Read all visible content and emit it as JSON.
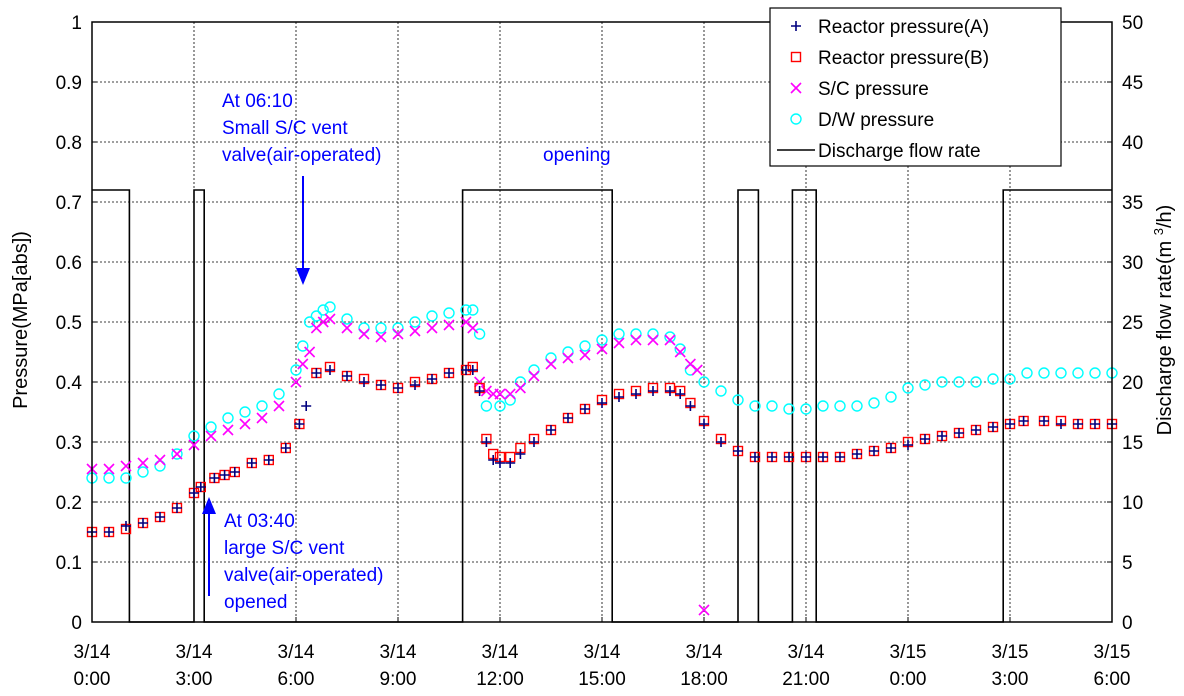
{
  "chart_data": {
    "type": "scatter",
    "title": "",
    "ylabel": "Pressure(MPa[abs])",
    "y2label": "Discharge flow rate(m³/h)",
    "xlabel": "",
    "x_unit": "hours from 3/14 0:00",
    "xlim": [
      0,
      30
    ],
    "ylim": [
      0,
      1
    ],
    "y2lim": [
      0,
      50
    ],
    "grid": true,
    "legend_position": "top-right",
    "y_ticks": [
      "0",
      "0.1",
      "0.2",
      "0.3",
      "0.4",
      "0.5",
      "0.6",
      "0.7",
      "0.8",
      "0.9",
      "1"
    ],
    "y2_ticks": [
      "0",
      "5",
      "10",
      "15",
      "20",
      "25",
      "30",
      "35",
      "40",
      "45",
      "50"
    ],
    "x_ticks": [
      {
        "x": 0,
        "line1": "3/14",
        "line2": "0:00"
      },
      {
        "x": 3,
        "line1": "3/14",
        "line2": "3:00"
      },
      {
        "x": 6,
        "line1": "3/14",
        "line2": "6:00"
      },
      {
        "x": 9,
        "line1": "3/14",
        "line2": "9:00"
      },
      {
        "x": 12,
        "line1": "3/14",
        "line2": "12:00"
      },
      {
        "x": 15,
        "line1": "3/14",
        "line2": "15:00"
      },
      {
        "x": 18,
        "line1": "3/14",
        "line2": "18:00"
      },
      {
        "x": 21,
        "line1": "3/14",
        "line2": "21:00"
      },
      {
        "x": 24,
        "line1": "3/15",
        "line2": "0:00"
      },
      {
        "x": 27,
        "line1": "3/15",
        "line2": "3:00"
      },
      {
        "x": 30,
        "line1": "3/15",
        "line2": "6:00"
      }
    ],
    "series": [
      {
        "name": "Reactor pressure(A)",
        "marker": "plus",
        "color": "#00007f",
        "points": [
          [
            0,
            0.15
          ],
          [
            0.5,
            0.15
          ],
          [
            1,
            0.16
          ],
          [
            1.5,
            0.165
          ],
          [
            2,
            0.175
          ],
          [
            2.5,
            0.19
          ],
          [
            3,
            0.215
          ],
          [
            3.2,
            0.225
          ],
          [
            3.6,
            0.24
          ],
          [
            3.9,
            0.245
          ],
          [
            4.2,
            0.25
          ],
          [
            4.7,
            0.265
          ],
          [
            5.2,
            0.27
          ],
          [
            5.7,
            0.29
          ],
          [
            6.1,
            0.33
          ],
          [
            6.3,
            0.36
          ],
          [
            6.6,
            0.415
          ],
          [
            7,
            0.42
          ],
          [
            7.5,
            0.41
          ],
          [
            8,
            0.4
          ],
          [
            8.5,
            0.395
          ],
          [
            9,
            0.39
          ],
          [
            9.5,
            0.395
          ],
          [
            10,
            0.405
          ],
          [
            10.5,
            0.415
          ],
          [
            11,
            0.42
          ],
          [
            11.2,
            0.42
          ],
          [
            11.4,
            0.385
          ],
          [
            11.6,
            0.3
          ],
          [
            11.8,
            0.27
          ],
          [
            12,
            0.265
          ],
          [
            12.3,
            0.265
          ],
          [
            12.6,
            0.28
          ],
          [
            13,
            0.3
          ],
          [
            13.5,
            0.32
          ],
          [
            14,
            0.34
          ],
          [
            14.5,
            0.355
          ],
          [
            15,
            0.365
          ],
          [
            15.5,
            0.375
          ],
          [
            16,
            0.38
          ],
          [
            16.5,
            0.385
          ],
          [
            17,
            0.385
          ],
          [
            17.3,
            0.38
          ],
          [
            17.6,
            0.36
          ],
          [
            18,
            0.33
          ],
          [
            18.5,
            0.3
          ],
          [
            19,
            0.285
          ],
          [
            19.5,
            0.275
          ],
          [
            20,
            0.275
          ],
          [
            20.5,
            0.275
          ],
          [
            21,
            0.275
          ],
          [
            21.5,
            0.275
          ],
          [
            22,
            0.275
          ],
          [
            22.5,
            0.28
          ],
          [
            23,
            0.285
          ],
          [
            23.5,
            0.29
          ],
          [
            24,
            0.295
          ],
          [
            24.5,
            0.305
          ],
          [
            25,
            0.31
          ],
          [
            25.5,
            0.315
          ],
          [
            26,
            0.32
          ],
          [
            26.5,
            0.325
          ],
          [
            27,
            0.33
          ],
          [
            27.4,
            0.335
          ],
          [
            28,
            0.335
          ],
          [
            28.5,
            0.33
          ],
          [
            29,
            0.33
          ],
          [
            29.5,
            0.33
          ],
          [
            30,
            0.33
          ]
        ]
      },
      {
        "name": "Reactor pressure(B)",
        "marker": "square",
        "color": "#ff0000",
        "points": [
          [
            0,
            0.15
          ],
          [
            0.5,
            0.15
          ],
          [
            1,
            0.155
          ],
          [
            1.5,
            0.165
          ],
          [
            2,
            0.175
          ],
          [
            2.5,
            0.19
          ],
          [
            3,
            0.215
          ],
          [
            3.2,
            0.225
          ],
          [
            3.6,
            0.24
          ],
          [
            3.9,
            0.245
          ],
          [
            4.2,
            0.25
          ],
          [
            4.7,
            0.265
          ],
          [
            5.2,
            0.27
          ],
          [
            5.7,
            0.29
          ],
          [
            6.1,
            0.33
          ],
          [
            6.6,
            0.415
          ],
          [
            7,
            0.425
          ],
          [
            7.5,
            0.41
          ],
          [
            8,
            0.405
          ],
          [
            8.5,
            0.395
          ],
          [
            9,
            0.39
          ],
          [
            9.5,
            0.4
          ],
          [
            10,
            0.405
          ],
          [
            10.5,
            0.415
          ],
          [
            11,
            0.42
          ],
          [
            11.2,
            0.425
          ],
          [
            11.4,
            0.39
          ],
          [
            11.6,
            0.305
          ],
          [
            11.8,
            0.28
          ],
          [
            12,
            0.275
          ],
          [
            12.3,
            0.275
          ],
          [
            12.6,
            0.29
          ],
          [
            13,
            0.305
          ],
          [
            13.5,
            0.32
          ],
          [
            14,
            0.34
          ],
          [
            14.5,
            0.355
          ],
          [
            15,
            0.37
          ],
          [
            15.5,
            0.38
          ],
          [
            16,
            0.385
          ],
          [
            16.5,
            0.39
          ],
          [
            17,
            0.39
          ],
          [
            17.3,
            0.385
          ],
          [
            17.6,
            0.365
          ],
          [
            18,
            0.335
          ],
          [
            18.5,
            0.305
          ],
          [
            19,
            0.285
          ],
          [
            19.5,
            0.275
          ],
          [
            20,
            0.275
          ],
          [
            20.5,
            0.275
          ],
          [
            21,
            0.275
          ],
          [
            21.5,
            0.275
          ],
          [
            22,
            0.275
          ],
          [
            22.5,
            0.28
          ],
          [
            23,
            0.285
          ],
          [
            23.5,
            0.29
          ],
          [
            24,
            0.3
          ],
          [
            24.5,
            0.305
          ],
          [
            25,
            0.31
          ],
          [
            25.5,
            0.315
          ],
          [
            26,
            0.32
          ],
          [
            26.5,
            0.325
          ],
          [
            27,
            0.33
          ],
          [
            27.4,
            0.335
          ],
          [
            28,
            0.335
          ],
          [
            28.5,
            0.335
          ],
          [
            29,
            0.33
          ],
          [
            29.5,
            0.33
          ],
          [
            30,
            0.33
          ]
        ]
      },
      {
        "name": "S/C pressure",
        "marker": "cross",
        "color": "#ff00ff",
        "points": [
          [
            0,
            0.255
          ],
          [
            0.5,
            0.255
          ],
          [
            1,
            0.26
          ],
          [
            1.5,
            0.265
          ],
          [
            2,
            0.27
          ],
          [
            2.5,
            0.28
          ],
          [
            3,
            0.295
          ],
          [
            3.5,
            0.31
          ],
          [
            4,
            0.32
          ],
          [
            4.5,
            0.33
          ],
          [
            5,
            0.34
          ],
          [
            5.5,
            0.36
          ],
          [
            6,
            0.4
          ],
          [
            6.2,
            0.43
          ],
          [
            6.4,
            0.45
          ],
          [
            6.6,
            0.49
          ],
          [
            6.8,
            0.5
          ],
          [
            7,
            0.505
          ],
          [
            7.5,
            0.49
          ],
          [
            8,
            0.48
          ],
          [
            8.5,
            0.475
          ],
          [
            9,
            0.48
          ],
          [
            9.5,
            0.485
          ],
          [
            10,
            0.49
          ],
          [
            10.5,
            0.495
          ],
          [
            11,
            0.5
          ],
          [
            11.2,
            0.49
          ],
          [
            11.4,
            0.4
          ],
          [
            11.6,
            0.385
          ],
          [
            11.8,
            0.38
          ],
          [
            12,
            0.38
          ],
          [
            12.3,
            0.38
          ],
          [
            12.6,
            0.39
          ],
          [
            13,
            0.41
          ],
          [
            13.5,
            0.43
          ],
          [
            14,
            0.44
          ],
          [
            14.5,
            0.445
          ],
          [
            15,
            0.455
          ],
          [
            15.5,
            0.465
          ],
          [
            16,
            0.47
          ],
          [
            16.5,
            0.47
          ],
          [
            17,
            0.47
          ],
          [
            17.3,
            0.45
          ],
          [
            17.6,
            0.43
          ],
          [
            17.8,
            0.42
          ],
          [
            18,
            0.02
          ]
        ]
      },
      {
        "name": "D/W pressure",
        "marker": "circle",
        "color": "#00ffff",
        "points": [
          [
            0,
            0.24
          ],
          [
            0.5,
            0.24
          ],
          [
            1,
            0.24
          ],
          [
            1.5,
            0.25
          ],
          [
            2,
            0.26
          ],
          [
            2.5,
            0.28
          ],
          [
            3,
            0.31
          ],
          [
            3.5,
            0.325
          ],
          [
            4,
            0.34
          ],
          [
            4.5,
            0.35
          ],
          [
            5,
            0.36
          ],
          [
            5.5,
            0.38
          ],
          [
            6,
            0.42
          ],
          [
            6.2,
            0.46
          ],
          [
            6.4,
            0.5
          ],
          [
            6.6,
            0.51
          ],
          [
            6.8,
            0.52
          ],
          [
            7,
            0.525
          ],
          [
            7.5,
            0.505
          ],
          [
            8,
            0.49
          ],
          [
            8.5,
            0.49
          ],
          [
            9,
            0.49
          ],
          [
            9.5,
            0.5
          ],
          [
            10,
            0.51
          ],
          [
            10.5,
            0.515
          ],
          [
            11,
            0.52
          ],
          [
            11.2,
            0.52
          ],
          [
            11.4,
            0.48
          ],
          [
            11.6,
            0.36
          ],
          [
            12,
            0.36
          ],
          [
            12.3,
            0.37
          ],
          [
            12.6,
            0.4
          ],
          [
            13,
            0.42
          ],
          [
            13.5,
            0.44
          ],
          [
            14,
            0.45
          ],
          [
            14.5,
            0.46
          ],
          [
            15,
            0.47
          ],
          [
            15.5,
            0.48
          ],
          [
            16,
            0.48
          ],
          [
            16.5,
            0.48
          ],
          [
            17,
            0.475
          ],
          [
            17.3,
            0.455
          ],
          [
            17.6,
            0.42
          ],
          [
            18,
            0.4
          ],
          [
            18.5,
            0.385
          ],
          [
            19,
            0.37
          ],
          [
            19.5,
            0.36
          ],
          [
            20,
            0.36
          ],
          [
            20.5,
            0.355
          ],
          [
            21,
            0.355
          ],
          [
            21.5,
            0.36
          ],
          [
            22,
            0.36
          ],
          [
            22.5,
            0.36
          ],
          [
            23,
            0.365
          ],
          [
            23.5,
            0.375
          ],
          [
            24,
            0.39
          ],
          [
            24.5,
            0.395
          ],
          [
            25,
            0.4
          ],
          [
            25.5,
            0.4
          ],
          [
            26,
            0.4
          ],
          [
            26.5,
            0.405
          ],
          [
            27,
            0.405
          ],
          [
            27.5,
            0.415
          ],
          [
            28,
            0.415
          ],
          [
            28.5,
            0.415
          ],
          [
            29,
            0.415
          ],
          [
            29.5,
            0.415
          ],
          [
            30,
            0.415
          ]
        ]
      },
      {
        "name": "Discharge flow rate",
        "marker": "line",
        "color": "#000000",
        "axis": "y2",
        "points": [
          [
            0,
            36
          ],
          [
            1.1,
            36
          ],
          [
            1.1,
            0
          ],
          [
            3.0,
            0
          ],
          [
            3.0,
            36
          ],
          [
            3.3,
            36
          ],
          [
            3.3,
            0
          ],
          [
            10.9,
            0
          ],
          [
            10.9,
            36
          ],
          [
            15.3,
            36
          ],
          [
            15.3,
            0
          ],
          [
            19.0,
            0
          ],
          [
            19.0,
            36
          ],
          [
            19.6,
            36
          ],
          [
            19.6,
            0
          ],
          [
            20.6,
            0
          ],
          [
            20.6,
            36
          ],
          [
            21.3,
            36
          ],
          [
            21.3,
            0
          ],
          [
            26.8,
            0
          ],
          [
            26.8,
            36
          ],
          [
            30,
            36
          ]
        ]
      }
    ],
    "annotations": [
      {
        "lines": [
          "At 06:10",
          "Small S/C vent",
          "valve(air-operated)"
        ],
        "arrow_x": 6.3,
        "arrow_from": 0.64,
        "arrow_to": 0.56
      },
      {
        "lines": [
          "opening"
        ]
      },
      {
        "lines": [
          "At 03:40",
          "large S/C vent",
          "valve(air-operated)",
          "opened"
        ],
        "arrow_x": 3.5,
        "arrow_from": 0.04,
        "arrow_to": 0.2
      }
    ]
  }
}
